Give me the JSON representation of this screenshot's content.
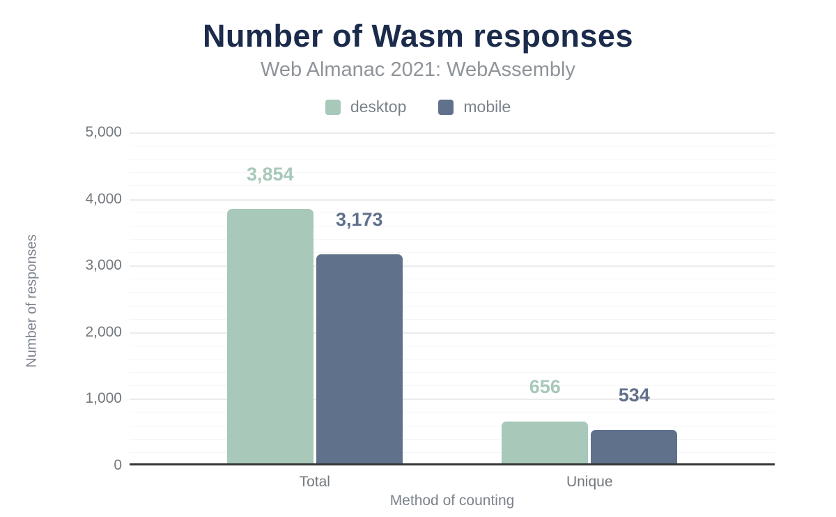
{
  "chart_data": {
    "type": "bar",
    "title": "Number of Wasm responses",
    "subtitle": "Web Almanac 2021: WebAssembly",
    "xlabel": "Method of counting",
    "ylabel": "Number of responses",
    "categories": [
      "Total",
      "Unique"
    ],
    "series": [
      {
        "name": "desktop",
        "color": "#a8c8b9",
        "values": [
          3854,
          656
        ],
        "labels": [
          "3,854",
          "656"
        ]
      },
      {
        "name": "mobile",
        "color": "#60718c",
        "values": [
          3173,
          534
        ],
        "labels": [
          "3,173",
          "534"
        ]
      }
    ],
    "ylim": [
      0,
      5000
    ],
    "yticks": [
      {
        "value": 0,
        "label": "0"
      },
      {
        "value": 1000,
        "label": "1,000"
      },
      {
        "value": 2000,
        "label": "2,000"
      },
      {
        "value": 3000,
        "label": "3,000"
      },
      {
        "value": 4000,
        "label": "4,000"
      },
      {
        "value": 5000,
        "label": "5,000"
      }
    ],
    "grid": {
      "minor_step": 200,
      "major_step": 1000,
      "visible": true
    },
    "legend_position": "top"
  },
  "colors": {
    "title": "#1b2b4b",
    "subtitle": "#8f9499",
    "muted_text": "#7b828c",
    "tick_text": "#72787d",
    "axis_line": "#363636",
    "grid_major": "#ebebeb",
    "grid_minor": "#f6f6f6",
    "bg": "#ffffff"
  }
}
